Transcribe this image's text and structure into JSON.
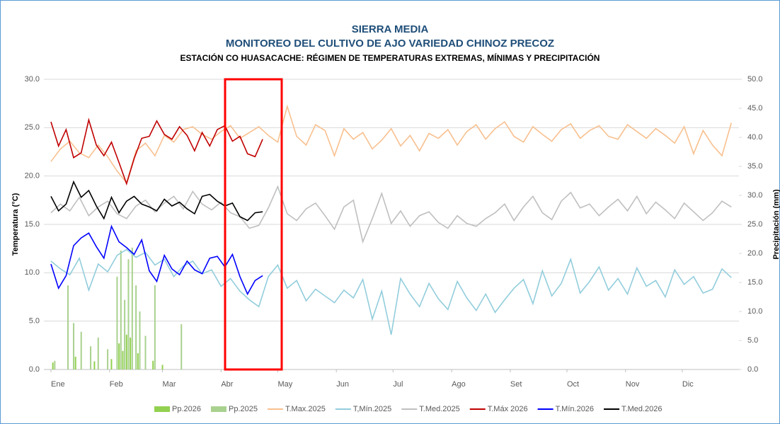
{
  "chart_data": {
    "type": "line",
    "title": "SIERRA MEDIA",
    "subtitle": "MONITOREO DEL CULTIVO DE AJO VARIEDAD CHINOZ PRECOZ",
    "subtitle2": "ESTACIÓN CO HUASACACHE: RÉGIMEN DE TEMPERATURAS EXTREMAS, MÍNIMAS Y PRECIPITACIÓN",
    "ylabel": "Temperatura (°C)",
    "y2label": "Precipitación (mm)",
    "xlim": [
      1,
      365
    ],
    "xticks": [
      {
        "value": 1,
        "label": "Ene"
      },
      {
        "value": 32,
        "label": "Feb"
      },
      {
        "value": 60,
        "label": "Mar"
      },
      {
        "value": 91,
        "label": "Abr"
      },
      {
        "value": 121,
        "label": "May"
      },
      {
        "value": 152,
        "label": "Jun"
      },
      {
        "value": 182,
        "label": "Jul"
      },
      {
        "value": 213,
        "label": "Ago"
      },
      {
        "value": 244,
        "label": "Set"
      },
      {
        "value": 274,
        "label": "Oct"
      },
      {
        "value": 305,
        "label": "Nov"
      },
      {
        "value": 335,
        "label": "Dic"
      }
    ],
    "ylim": [
      0,
      30
    ],
    "yticks": [
      {
        "value": 0,
        "label": "0.0"
      },
      {
        "value": 5,
        "label": "5.0"
      },
      {
        "value": 10,
        "label": "10.0"
      },
      {
        "value": 15,
        "label": "15.0"
      },
      {
        "value": 20,
        "label": "20.0"
      },
      {
        "value": 25,
        "label": "25.0"
      },
      {
        "value": 30,
        "label": "30.0"
      }
    ],
    "y2lim": [
      0,
      50
    ],
    "y2ticks": [
      {
        "value": 0,
        "label": "0.0"
      },
      {
        "value": 5,
        "label": "5.0"
      },
      {
        "value": 10,
        "label": "10.0"
      },
      {
        "value": 15,
        "label": "15.0"
      },
      {
        "value": 20,
        "label": "20.0"
      },
      {
        "value": 25,
        "label": "25.0"
      },
      {
        "value": 30,
        "label": "30.0"
      },
      {
        "value": 35,
        "label": "35.0"
      },
      {
        "value": 40,
        "label": "40.0"
      },
      {
        "value": 45,
        "label": "45.0"
      },
      {
        "value": 50,
        "label": "50.0"
      }
    ],
    "grid": true,
    "legend": "bottom",
    "series": [
      {
        "name": "Pp.2026",
        "type": "bar",
        "axis": "y2",
        "color": "#92d050",
        "x": [
          2,
          14,
          24,
          33,
          37,
          39,
          41,
          43,
          47,
          55,
          60
        ],
        "values": [
          1.2,
          2.2,
          1.4,
          1.8,
          4.5,
          3.2,
          6,
          5.5,
          2.8,
          1.5,
          0.8
        ]
      },
      {
        "name": "Pp.2025",
        "type": "bar",
        "axis": "y2",
        "color": "#a9d18e",
        "x": [
          3,
          10,
          13,
          17,
          22,
          26,
          31,
          36,
          38,
          40,
          42,
          44,
          46,
          48,
          51,
          56,
          70
        ],
        "values": [
          1.5,
          14.5,
          8,
          6.5,
          4,
          5.5,
          3.5,
          16,
          20.5,
          12,
          19,
          21,
          14.5,
          10,
          5.8,
          14.5,
          7.8
        ]
      },
      {
        "name": "T.Max.2025",
        "type": "line",
        "color": "#f8c08f",
        "x": [
          1,
          6,
          11,
          16,
          21,
          26,
          31,
          36,
          41,
          46,
          51,
          56,
          61,
          66,
          71,
          76,
          81,
          86,
          91,
          96,
          101,
          106,
          111,
          116,
          121,
          126,
          131,
          136,
          141,
          146,
          151,
          156,
          161,
          166,
          171,
          176,
          181,
          186,
          191,
          196,
          201,
          206,
          211,
          216,
          221,
          226,
          231,
          236,
          241,
          246,
          251,
          256,
          261,
          266,
          271,
          276,
          281,
          286,
          291,
          296,
          301,
          306,
          311,
          316,
          321,
          326,
          331,
          336,
          341,
          346,
          351,
          356,
          361
        ],
        "values": [
          21.5,
          22.8,
          23.6,
          22.4,
          21.9,
          23.2,
          22.0,
          20.5,
          19.3,
          22.6,
          23.4,
          22.1,
          24.2,
          23.5,
          24.8,
          25.1,
          24.3,
          23.8,
          24.6,
          25.2,
          23.9,
          24.5,
          25.1,
          24.2,
          23.5,
          27.2,
          24.1,
          23.2,
          25.3,
          24.7,
          22.1,
          24.9,
          23.8,
          24.5,
          22.8,
          23.7,
          24.9,
          23.1,
          24.2,
          22.6,
          24.4,
          23.9,
          24.8,
          23.2,
          24.6,
          25.3,
          23.8,
          24.9,
          25.6,
          24.1,
          23.5,
          25.1,
          24.3,
          23.6,
          24.8,
          25.4,
          23.9,
          24.7,
          25.2,
          24.1,
          23.8,
          25.3,
          24.6,
          23.9,
          24.9,
          24.2,
          23.4,
          25.1,
          22.3,
          24.7,
          23.2,
          22.1,
          25.5
        ]
      },
      {
        "name": "T,Mín.2025",
        "type": "line",
        "color": "#92cddc",
        "x": [
          1,
          6,
          11,
          16,
          21,
          26,
          31,
          36,
          41,
          46,
          51,
          56,
          61,
          66,
          71,
          76,
          81,
          86,
          91,
          96,
          101,
          106,
          111,
          116,
          121,
          126,
          131,
          136,
          141,
          146,
          151,
          156,
          161,
          166,
          171,
          176,
          181,
          186,
          191,
          196,
          201,
          206,
          211,
          216,
          221,
          226,
          231,
          236,
          241,
          246,
          251,
          256,
          261,
          266,
          271,
          276,
          281,
          286,
          291,
          296,
          301,
          306,
          311,
          316,
          321,
          326,
          331,
          336,
          341,
          346,
          351,
          356,
          361
        ],
        "values": [
          11.2,
          10.4,
          9.8,
          11.5,
          8.2,
          10.9,
          10.1,
          11.8,
          12.4,
          11.6,
          12.1,
          10.8,
          11.4,
          9.6,
          10.7,
          11.2,
          9.9,
          10.3,
          8.6,
          9.4,
          8.1,
          7.2,
          6.5,
          9.6,
          10.8,
          8.4,
          9.2,
          7.1,
          8.3,
          7.6,
          6.9,
          8.2,
          7.4,
          9.3,
          5.2,
          8.1,
          3.6,
          9.4,
          7.8,
          6.5,
          8.9,
          7.3,
          6.2,
          9.1,
          7.4,
          6.1,
          7.8,
          5.9,
          7.2,
          8.4,
          9.3,
          6.8,
          10.2,
          7.6,
          8.9,
          11.4,
          7.9,
          9.1,
          10.6,
          8.2,
          9.4,
          7.8,
          10.5,
          8.6,
          9.2,
          7.5,
          10.3,
          8.8,
          9.6,
          7.9,
          8.3,
          10.4,
          9.5
        ]
      },
      {
        "name": "T.Med.2025",
        "type": "line",
        "color": "#bfbfbf",
        "x": [
          1,
          6,
          11,
          16,
          21,
          26,
          31,
          36,
          41,
          46,
          51,
          56,
          61,
          66,
          71,
          76,
          81,
          86,
          91,
          96,
          101,
          106,
          111,
          116,
          121,
          126,
          131,
          136,
          141,
          146,
          151,
          156,
          161,
          166,
          171,
          176,
          181,
          186,
          191,
          196,
          201,
          206,
          211,
          216,
          221,
          226,
          231,
          236,
          241,
          246,
          251,
          256,
          261,
          266,
          271,
          276,
          281,
          286,
          291,
          296,
          301,
          306,
          311,
          316,
          321,
          326,
          331,
          336,
          341,
          346,
          351,
          356,
          361
        ],
        "values": [
          16.2,
          17.1,
          16.4,
          17.8,
          15.9,
          16.8,
          17.4,
          16.1,
          15.6,
          16.9,
          17.5,
          16.3,
          17.2,
          17.9,
          16.6,
          18.4,
          17.1,
          16.5,
          17.3,
          16.2,
          15.8,
          14.6,
          14.9,
          16.7,
          18.9,
          16.1,
          15.4,
          16.6,
          17.2,
          15.9,
          14.5,
          16.8,
          17.5,
          13.2,
          15.6,
          18.2,
          15.1,
          16.4,
          14.8,
          15.9,
          16.3,
          15.2,
          14.6,
          15.9,
          15.1,
          14.8,
          15.6,
          16.2,
          17.1,
          15.4,
          16.8,
          17.9,
          16.2,
          15.5,
          17.4,
          18.3,
          16.7,
          17.1,
          15.9,
          16.8,
          17.6,
          16.4,
          17.9,
          16.1,
          17.3,
          16.5,
          15.6,
          17.2,
          16.3,
          15.4,
          16.2,
          17.4,
          16.8
        ]
      },
      {
        "name": "T.Máx 2026",
        "type": "line",
        "color": "#c00000",
        "x": [
          1,
          5,
          9,
          13,
          17,
          21,
          25,
          29,
          33,
          37,
          41,
          45,
          49,
          53,
          57,
          61,
          65,
          69,
          73,
          77,
          81,
          85,
          89,
          93,
          97,
          101,
          105,
          109,
          113
        ],
        "values": [
          25.6,
          23.1,
          24.8,
          21.9,
          22.4,
          25.8,
          23.2,
          22.1,
          23.5,
          21.4,
          19.2,
          21.8,
          23.9,
          24.1,
          25.7,
          24.3,
          23.8,
          25.1,
          24.2,
          22.6,
          24.5,
          23.1,
          24.8,
          25.2,
          23.6,
          24.1,
          22.3,
          22.0,
          23.8
        ]
      },
      {
        "name": "T.Mín.2026",
        "type": "line",
        "color": "#0000ff",
        "x": [
          1,
          5,
          9,
          13,
          17,
          21,
          25,
          29,
          33,
          37,
          41,
          45,
          49,
          53,
          57,
          61,
          65,
          69,
          73,
          77,
          81,
          85,
          89,
          93,
          97,
          101,
          105,
          109,
          113
        ],
        "values": [
          10.9,
          8.4,
          9.7,
          12.8,
          13.6,
          14.1,
          12.7,
          11.5,
          14.8,
          13.2,
          12.6,
          11.9,
          13.4,
          10.2,
          9.1,
          11.8,
          10.4,
          9.8,
          11.2,
          10.3,
          9.9,
          11.5,
          11.7,
          10.6,
          11.9,
          9.6,
          7.8,
          9.2,
          9.7
        ]
      },
      {
        "name": "T.Med.2026",
        "type": "line",
        "color": "#000000",
        "x": [
          1,
          5,
          9,
          13,
          17,
          21,
          25,
          29,
          33,
          37,
          41,
          45,
          49,
          53,
          57,
          61,
          65,
          69,
          73,
          77,
          81,
          85,
          89,
          93,
          97,
          101,
          105,
          109,
          113
        ],
        "values": [
          17.9,
          16.4,
          17.1,
          19.4,
          17.8,
          18.5,
          16.9,
          15.6,
          17.8,
          16.2,
          17.4,
          17.9,
          17.1,
          16.8,
          16.4,
          17.6,
          16.9,
          17.3,
          16.6,
          16.1,
          17.9,
          18.1,
          17.4,
          16.9,
          17.2,
          15.8,
          15.4,
          16.2,
          16.3
        ]
      }
    ]
  }
}
